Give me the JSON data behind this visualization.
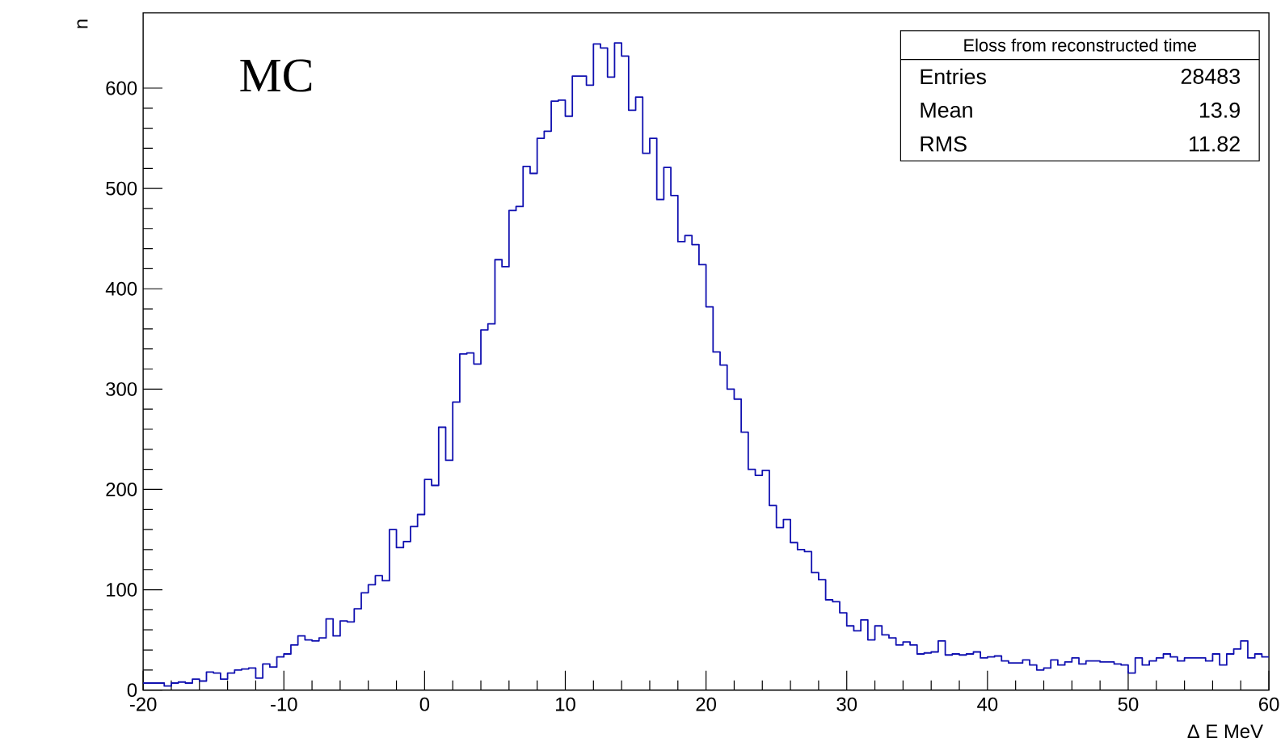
{
  "chart_data": {
    "type": "histogram",
    "xlabel": "Δ E MeV",
    "ylabel": "n",
    "bins": [
      -20,
      -19.5,
      -19,
      -18.5,
      -18,
      -17.5,
      -17,
      -16.5,
      -16,
      -15.5,
      -15,
      -14.5,
      -14,
      -13.5,
      -13,
      -12.5,
      -12,
      -11.5,
      -11,
      -10.5,
      -10,
      -9.5,
      -9,
      -8.5,
      -8,
      -7.5,
      -7,
      -6.5,
      -6,
      -5.5,
      -5,
      -4.5,
      -4,
      -3.5,
      -3,
      -2.5,
      -2,
      -1.5,
      -1,
      -0.5,
      0,
      0.5,
      1,
      1.5,
      2,
      2.5,
      3,
      3.5,
      4,
      4.5,
      5,
      5.5,
      6,
      6.5,
      7,
      7.5,
      8,
      8.5,
      9,
      9.5,
      10,
      10.5,
      11,
      11.5,
      12,
      12.5,
      13,
      13.5,
      14,
      14.5,
      15,
      15.5,
      16,
      16.5,
      17,
      17.5,
      18,
      18.5,
      19,
      19.5,
      20,
      20.5,
      21,
      21.5,
      22,
      22.5,
      23,
      23.5,
      24,
      24.5,
      25,
      25.5,
      26,
      26.5,
      27,
      27.5,
      28,
      28.5,
      29,
      29.5,
      30,
      30.5,
      31,
      31.5,
      32,
      32.5,
      33,
      33.5,
      34,
      34.5,
      35,
      35.5,
      36,
      36.5,
      37,
      37.5,
      38,
      38.5,
      39,
      39.5,
      40,
      40.5,
      41,
      41.5,
      42,
      42.5,
      43,
      43.5,
      44,
      44.5,
      45,
      45.5,
      46,
      46.5,
      47,
      47.5,
      48,
      48.5,
      49,
      49.5,
      50,
      50.5,
      51,
      51.5,
      52,
      52.5,
      53,
      53.5,
      54,
      54.5,
      55,
      55.5,
      56,
      56.5,
      57,
      57.5,
      58,
      58.5,
      59,
      59.5,
      60
    ],
    "values": [
      7,
      7,
      7,
      4,
      7,
      8,
      7,
      11,
      9,
      18,
      17,
      11,
      17,
      20,
      21,
      22,
      12,
      26,
      23,
      33,
      36,
      45,
      54,
      50,
      49,
      52,
      71,
      54,
      69,
      68,
      81,
      97,
      105,
      114,
      109,
      160,
      142,
      148,
      163,
      175,
      210,
      204,
      262,
      229,
      287,
      335,
      336,
      325,
      359,
      365,
      429,
      422,
      478,
      482,
      522,
      515,
      550,
      557,
      587,
      588,
      572,
      612,
      612,
      603,
      644,
      640,
      611,
      645,
      632,
      578,
      591,
      535,
      550,
      489,
      521,
      493,
      447,
      453,
      444,
      424,
      382,
      337,
      324,
      300,
      290,
      257,
      220,
      214,
      219,
      184,
      162,
      170,
      147,
      140,
      138,
      117,
      110,
      90,
      88,
      77,
      64,
      59,
      70,
      50,
      64,
      55,
      52,
      45,
      48,
      45,
      36,
      37,
      38,
      49,
      35,
      36,
      35,
      36,
      38,
      32,
      33,
      34,
      29,
      27,
      27,
      30,
      25,
      20,
      22,
      30,
      25,
      28,
      32,
      26,
      29,
      29,
      28,
      28,
      26,
      25,
      17,
      32,
      25,
      29,
      32,
      36,
      33,
      29,
      32,
      32,
      32,
      29,
      36,
      25,
      36,
      41,
      49,
      32,
      36,
      33
    ],
    "color": "#1010b0",
    "xlim": [
      -20,
      60
    ],
    "xticks": [
      -20,
      -10,
      0,
      10,
      20,
      30,
      40,
      50,
      60
    ],
    "ylim": [
      0,
      675
    ],
    "yticks": [
      0,
      100,
      200,
      300,
      400,
      500,
      600
    ],
    "annotations": [
      "MC",
      "Eloss from reconstructed time",
      "Entries",
      "28483",
      "Mean",
      "13.9",
      "RMS",
      "11.82"
    ]
  }
}
